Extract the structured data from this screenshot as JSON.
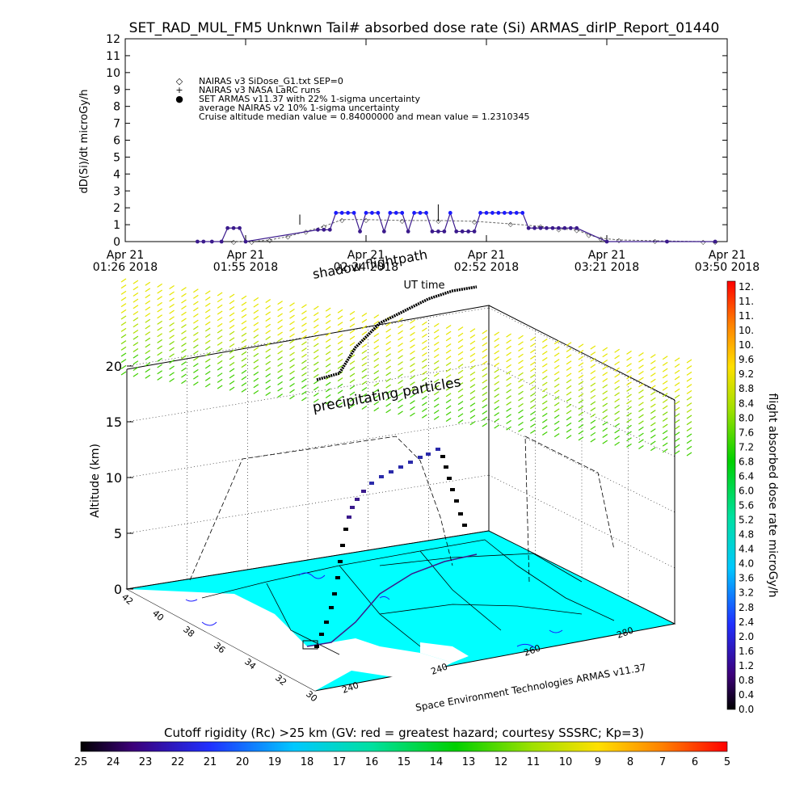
{
  "title": "SET_RAD_MUL_FM5 Unknwn Tail#  absorbed dose rate (Si) ARMAS_dirIP_Report_01440",
  "chart_data": [
    {
      "type": "line",
      "ylabel": "dD(Si)/dt microGy/h",
      "xlabel": "UT time",
      "ylim": [
        0,
        12
      ],
      "yticks": [
        0,
        1,
        2,
        3,
        4,
        5,
        6,
        7,
        8,
        9,
        10,
        11,
        12
      ],
      "xticks": [
        {
          "t": 0,
          "l1": "Apr 21",
          "l2": "01:26 2018"
        },
        {
          "t": 1,
          "l1": "Apr 21",
          "l2": "01:55 2018"
        },
        {
          "t": 2,
          "l1": "Apr 21",
          "l2": "02:24 2018"
        },
        {
          "t": 3,
          "l1": "Apr 21",
          "l2": "02:52 2018"
        },
        {
          "t": 4,
          "l1": "Apr 21",
          "l2": "03:21 2018"
        },
        {
          "t": 5,
          "l1": "Apr 21",
          "l2": "03:50 2018"
        }
      ],
      "legend": [
        {
          "symbol": "◇",
          "color": "#000000",
          "text": "NAIRAS v3 SiDose_G1.txt SEP=0"
        },
        {
          "symbol": "+",
          "color": "#000000",
          "text": "NAIRAS v3 NASA LaRC runs"
        },
        {
          "symbol": "●",
          "color": "#1a1aff",
          "text": "SET ARMAS v11.37 with 22% 1-sigma uncertainty"
        },
        {
          "symbol": "",
          "color": "#000000",
          "text": "average NAIRAS v2 10% 1-sigma uncertainty"
        },
        {
          "symbol": "",
          "color": "#000000",
          "text": "Cruise altitude median value = 0.84000000 and mean value = 1.2310345"
        }
      ],
      "series": [
        {
          "name": "NAIRAS v3 SiDose_G1.txt SEP=0",
          "color": "#666666",
          "x": [
            0.9,
            1.05,
            1.2,
            1.35,
            1.5,
            1.65,
            1.8,
            2.0,
            2.3,
            2.6,
            2.9,
            3.2,
            3.45,
            3.6,
            3.75,
            3.85,
            3.95,
            4.1,
            4.4,
            4.8,
            4.9
          ],
          "values": [
            0,
            0,
            0.1,
            0.3,
            0.6,
            0.9,
            1.3,
            1.3,
            1.25,
            1.25,
            1.2,
            1.05,
            0.9,
            0.75,
            0.7,
            0.4,
            0.2,
            0.1,
            0.05,
            0,
            0
          ]
        },
        {
          "name": "SET ARMAS v11.37 with 22% 1-sigma uncertainty",
          "color": "#3b1a8c",
          "x": [
            0.6,
            0.65,
            0.72,
            0.8,
            0.85,
            0.9,
            0.95,
            1.0,
            1.6,
            1.65,
            1.7,
            1.75,
            1.8,
            1.85,
            1.9,
            1.95,
            2.0,
            2.05,
            2.1,
            2.15,
            2.2,
            2.25,
            2.3,
            2.35,
            2.4,
            2.45,
            2.5,
            2.55,
            2.6,
            2.65,
            2.7,
            2.75,
            2.8,
            2.85,
            2.9,
            2.95,
            3.0,
            3.05,
            3.1,
            3.15,
            3.2,
            3.25,
            3.3,
            3.35,
            3.4,
            3.45,
            3.5,
            3.55,
            3.6,
            3.65,
            3.7,
            3.75,
            4.0,
            4.5,
            4.9
          ],
          "values": [
            0,
            0,
            0,
            0,
            0.8,
            0.8,
            0.8,
            0,
            0.7,
            0.7,
            0.7,
            1.7,
            1.7,
            1.7,
            1.7,
            0.6,
            1.7,
            1.7,
            1.7,
            0.6,
            1.7,
            1.7,
            1.7,
            0.6,
            1.7,
            1.7,
            1.7,
            0.6,
            0.6,
            0.6,
            1.7,
            0.6,
            0.6,
            0.6,
            0.6,
            1.7,
            1.7,
            1.7,
            1.7,
            1.7,
            1.7,
            1.7,
            1.7,
            0.8,
            0.8,
            0.8,
            0.8,
            0.8,
            0.8,
            0.8,
            0.8,
            0.8,
            0,
            0,
            0
          ]
        }
      ]
    },
    {
      "type": "scatter",
      "zlabel": "Altitude (km)",
      "zticks": [
        0,
        5,
        10,
        15,
        20
      ],
      "lat_ticks": [
        42,
        40,
        38,
        36,
        34,
        32,
        30
      ],
      "lon_ticks": [
        240,
        240,
        260,
        280
      ],
      "annotations": [
        "shadow flightpath",
        "precipitating particles",
        "Space Environment Technologies ARMAS v11.37"
      ]
    }
  ],
  "right_colorbar": {
    "label": "flight absorbed dose rate microGy/h",
    "ticks": [
      "12.",
      "11.",
      "11.",
      "10.",
      "10.",
      "9.6",
      "9.2",
      "8.8",
      "8.4",
      "8.0",
      "7.6",
      "7.2",
      "6.8",
      "6.4",
      "6.0",
      "5.6",
      "5.2",
      "4.8",
      "4.4",
      "4.0",
      "3.6",
      "3.2",
      "2.8",
      "2.4",
      "2.0",
      "1.6",
      "1.2",
      "0.8",
      "0.4",
      "0.0"
    ]
  },
  "bottom_colorbar": {
    "title": "Cutoff rigidity (Rc) >25 km (GV: red = greatest hazard; courtesy SSSRC; Kp=3)",
    "ticks": [
      "25",
      "24",
      "23",
      "22",
      "21",
      "20",
      "19",
      "18",
      "17",
      "16",
      "15",
      "14",
      "13",
      "12",
      "11",
      "10",
      "9",
      "8",
      "7",
      "6",
      "5"
    ]
  },
  "colors": {
    "land": "#00ffff",
    "track": "#3b1a8c",
    "armas": "#1a1aff",
    "nairas": "#666666"
  }
}
